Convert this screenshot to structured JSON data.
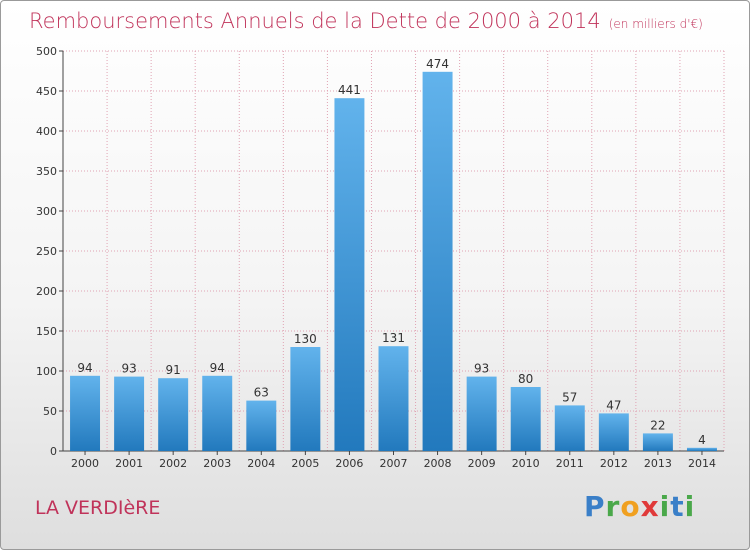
{
  "title": "Remboursements Annuels de la Dette de 2000 à 2014",
  "unit_note": "(en milliers d'€)",
  "commune": "LA VERDIèRE",
  "logo_text": "Proxiti",
  "colors": {
    "title": "#c0335a",
    "bar_top": "#62b3ec",
    "bar_bottom": "#2279bd",
    "grid": "#e0a3b3"
  },
  "chart_data": {
    "type": "bar",
    "title": "Remboursements Annuels de la Dette de 2000 à 2014",
    "xlabel": "",
    "ylabel": "",
    "categories": [
      "2000",
      "2001",
      "2002",
      "2003",
      "2004",
      "2005",
      "2006",
      "2007",
      "2008",
      "2009",
      "2010",
      "2011",
      "2012",
      "2013",
      "2014"
    ],
    "values": [
      94,
      93,
      91,
      94,
      63,
      130,
      441,
      131,
      474,
      93,
      80,
      57,
      47,
      22,
      4
    ],
    "ylim": [
      0,
      500
    ],
    "yticks": [
      0,
      50,
      100,
      150,
      200,
      250,
      300,
      350,
      400,
      450,
      500
    ],
    "grid": true
  }
}
